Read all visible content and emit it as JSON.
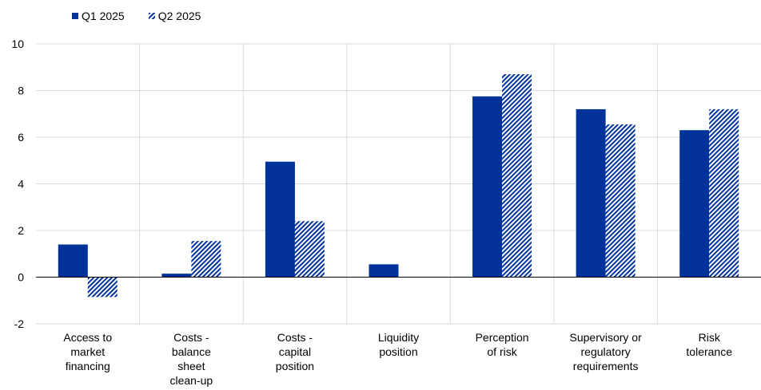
{
  "chart_data": {
    "type": "bar",
    "categories": [
      [
        "Access to",
        "market",
        "financing"
      ],
      [
        "Costs -",
        "balance",
        "sheet",
        "clean-up"
      ],
      [
        "Costs -",
        "capital",
        "position"
      ],
      [
        "Liquidity",
        "position"
      ],
      [
        "Perception",
        "of risk"
      ],
      [
        "Supervisory or",
        "regulatory",
        "requirements"
      ],
      [
        "Risk",
        "tolerance"
      ]
    ],
    "series": [
      {
        "name": "Q1 2025",
        "color": "#003299",
        "pattern": "solid",
        "values": [
          1.4,
          0.15,
          4.95,
          0.55,
          7.75,
          7.2,
          6.3
        ]
      },
      {
        "name": "Q2 2025",
        "color": "#003299",
        "pattern": "diagonal-hatch",
        "values": [
          -0.85,
          1.55,
          2.4,
          null,
          8.7,
          6.55,
          7.2
        ]
      }
    ],
    "ylim": [
      -2,
      10
    ],
    "yticks": [
      "10",
      "8",
      "6",
      "4",
      "2",
      "0",
      "-2"
    ],
    "ytick_values": [
      10,
      8,
      6,
      4,
      2,
      0,
      -2
    ],
    "grid": true,
    "legend_placement": "top-left",
    "title": "",
    "xlabel": "",
    "ylabel": ""
  },
  "legend": {
    "q1_label": "Q1 2025",
    "q2_label": "Q2 2025"
  }
}
